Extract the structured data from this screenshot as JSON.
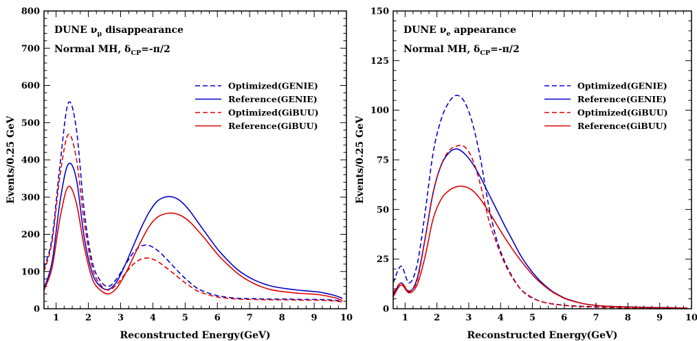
{
  "chart_data": [
    {
      "type": "line",
      "annotation_line1": "DUNE ν",
      "annotation_line1_sub": "μ",
      "annotation_line1_rest": " disappearance",
      "annotation_line2": "Normal MH, δ",
      "annotation_line2_sub": "CP",
      "annotation_line2_rest": "=-π/2",
      "xlabel": "Reconstructed Energy(GeV)",
      "ylabel": "Events/0.25 GeV",
      "xlim": [
        0.625,
        10
      ],
      "ylim": [
        0,
        800
      ],
      "xticks": [
        1,
        2,
        3,
        4,
        5,
        6,
        7,
        8,
        9,
        10
      ],
      "yticks": [
        0,
        100,
        200,
        300,
        400,
        500,
        600,
        700,
        800
      ],
      "legend_position": "top-right",
      "series": [
        {
          "name": "Optimized(GENIE)",
          "color": "#0000cc",
          "dash": true,
          "x": [
            0.625,
            0.875,
            1.125,
            1.375,
            1.625,
            1.875,
            2.125,
            2.375,
            2.625,
            2.875,
            3.125,
            3.375,
            3.625,
            3.875,
            4.125,
            4.375,
            4.625,
            4.875,
            5.125,
            5.375,
            5.625,
            5.875,
            6.125,
            6.625,
            7.125,
            7.625,
            8.125,
            8.625,
            9.125,
            9.625,
            9.875
          ],
          "y": [
            110,
            190,
            390,
            552,
            485,
            260,
            125,
            75,
            60,
            80,
            115,
            148,
            168,
            170,
            158,
            138,
            115,
            92,
            72,
            55,
            45,
            38,
            33,
            28,
            27,
            26,
            26,
            25,
            25,
            23,
            20
          ]
        },
        {
          "name": "Reference(GENIE)",
          "color": "#0000cc",
          "dash": false,
          "x": [
            0.625,
            0.875,
            1.125,
            1.375,
            1.625,
            1.875,
            2.125,
            2.375,
            2.625,
            2.875,
            3.125,
            3.375,
            3.625,
            3.875,
            4.125,
            4.375,
            4.625,
            4.875,
            5.125,
            5.375,
            5.625,
            5.875,
            6.125,
            6.625,
            7.125,
            7.625,
            8.125,
            8.625,
            9.125,
            9.625,
            9.875
          ],
          "y": [
            55,
            125,
            290,
            388,
            350,
            190,
            95,
            60,
            52,
            72,
            115,
            165,
            215,
            258,
            288,
            300,
            300,
            288,
            265,
            235,
            205,
            175,
            148,
            105,
            78,
            62,
            54,
            49,
            45,
            36,
            28
          ]
        },
        {
          "name": "Optimized(GiBUU)",
          "color": "#dd0000",
          "dash": true,
          "x": [
            0.625,
            0.875,
            1.125,
            1.375,
            1.625,
            1.875,
            2.125,
            2.375,
            2.625,
            2.875,
            3.125,
            3.375,
            3.625,
            3.875,
            4.125,
            4.375,
            4.625,
            4.875,
            5.125,
            5.375,
            5.625,
            5.875,
            6.125,
            6.625,
            7.125,
            7.625,
            8.125,
            8.625,
            9.125,
            9.625,
            9.875
          ],
          "y": [
            100,
            180,
            360,
            468,
            405,
            230,
            110,
            65,
            50,
            65,
            92,
            118,
            133,
            136,
            128,
            113,
            96,
            78,
            62,
            48,
            40,
            34,
            30,
            26,
            25,
            24,
            24,
            23,
            23,
            21,
            18
          ]
        },
        {
          "name": "Reference(GiBUU)",
          "color": "#dd0000",
          "dash": false,
          "x": [
            0.625,
            0.875,
            1.125,
            1.375,
            1.625,
            1.875,
            2.125,
            2.375,
            2.625,
            2.875,
            3.125,
            3.375,
            3.625,
            3.875,
            4.125,
            4.375,
            4.625,
            4.875,
            5.125,
            5.375,
            5.625,
            5.875,
            6.125,
            6.625,
            7.125,
            7.625,
            8.125,
            8.625,
            9.125,
            9.625,
            9.875
          ],
          "y": [
            50,
            110,
            245,
            328,
            285,
            165,
            80,
            50,
            40,
            55,
            90,
            135,
            180,
            220,
            245,
            255,
            257,
            250,
            235,
            212,
            187,
            160,
            135,
            95,
            68,
            52,
            45,
            41,
            38,
            30,
            22
          ]
        }
      ]
    },
    {
      "type": "line",
      "annotation_line1": "DUNE ν",
      "annotation_line1_sub": "e",
      "annotation_line1_rest": " appearance",
      "annotation_line2": "Normal MH, δ",
      "annotation_line2_sub": "CP",
      "annotation_line2_rest": "=-π/2",
      "xlabel": "Reconstructed Energy(GeV)",
      "ylabel": "Events/0.25 GeV",
      "xlim": [
        0.625,
        10
      ],
      "ylim": [
        0,
        150
      ],
      "xticks": [
        1,
        2,
        3,
        4,
        5,
        6,
        7,
        8,
        9,
        10
      ],
      "yticks": [
        0,
        25,
        50,
        75,
        100,
        125,
        150
      ],
      "legend_position": "top-right",
      "series": [
        {
          "name": "Optimized(GENIE)",
          "color": "#0000cc",
          "dash": true,
          "x": [
            0.625,
            0.875,
            1.125,
            1.375,
            1.625,
            1.875,
            2.125,
            2.375,
            2.625,
            2.875,
            3.125,
            3.375,
            3.625,
            3.875,
            4.125,
            4.375,
            4.625,
            4.875,
            5.125,
            5.375,
            5.625,
            5.875,
            6.125,
            6.625,
            7.125,
            7.625,
            8.125,
            8.625,
            9.125,
            9.625,
            9.875
          ],
          "y": [
            13,
            21.5,
            13,
            22,
            48,
            78,
            95,
            104,
            107.5,
            104,
            93,
            75,
            52,
            35,
            24,
            16,
            10,
            6.5,
            4.5,
            3.2,
            2.5,
            2,
            1.6,
            1.2,
            0.9,
            0.7,
            0.6,
            0.5,
            0.4,
            0.3,
            0.2
          ]
        },
        {
          "name": "Reference(GENIE)",
          "color": "#0000cc",
          "dash": false,
          "x": [
            0.625,
            0.875,
            1.125,
            1.375,
            1.625,
            1.875,
            2.125,
            2.375,
            2.625,
            2.875,
            3.125,
            3.375,
            3.625,
            3.875,
            4.125,
            4.375,
            4.625,
            4.875,
            5.125,
            5.375,
            5.625,
            5.875,
            6.125,
            6.625,
            7.125,
            7.625,
            8.125,
            8.625,
            9.125,
            9.625,
            9.875
          ],
          "y": [
            7,
            13,
            8.5,
            15,
            35,
            58,
            72,
            78.5,
            80.5,
            78,
            73,
            66,
            58,
            50,
            42,
            34.5,
            27,
            21,
            16,
            12,
            8.8,
            6.5,
            4.7,
            2.5,
            1.5,
            1.1,
            0.9,
            0.7,
            0.6,
            0.4,
            0.3
          ]
        },
        {
          "name": "Optimized(GiBUU)",
          "color": "#dd0000",
          "dash": true,
          "x": [
            0.625,
            0.875,
            1.125,
            1.375,
            1.625,
            1.875,
            2.125,
            2.375,
            2.625,
            2.875,
            3.125,
            3.375,
            3.625,
            3.875,
            4.125,
            4.375,
            4.625,
            4.875,
            5.125,
            5.375,
            5.625,
            5.875,
            6.125,
            6.625,
            7.125,
            7.625,
            8.125,
            8.625,
            9.125,
            9.625,
            9.875
          ],
          "y": [
            8,
            13,
            9,
            14,
            35,
            58,
            72,
            79.5,
            82,
            81.5,
            75,
            62,
            45,
            33,
            23,
            15.5,
            10,
            6.8,
            4.5,
            3.2,
            2.4,
            1.9,
            1.5,
            1.1,
            0.8,
            0.6,
            0.5,
            0.4,
            0.3,
            0.2,
            0.2
          ]
        },
        {
          "name": "Reference(GiBUU)",
          "color": "#dd0000",
          "dash": false,
          "x": [
            0.625,
            0.875,
            1.125,
            1.375,
            1.625,
            1.875,
            2.125,
            2.375,
            2.625,
            2.875,
            3.125,
            3.375,
            3.625,
            3.875,
            4.125,
            4.375,
            4.625,
            4.875,
            5.125,
            5.375,
            5.625,
            5.875,
            6.125,
            6.625,
            7.125,
            7.625,
            8.125,
            8.625,
            9.125,
            9.625,
            9.875
          ],
          "y": [
            6,
            12,
            8,
            12,
            26,
            45,
            55,
            59.5,
            61.5,
            61.5,
            59.5,
            55,
            49,
            42.5,
            36,
            30,
            24.5,
            19.5,
            15,
            11.5,
            8.5,
            6.3,
            4.5,
            2.5,
            1.5,
            1,
            0.8,
            0.6,
            0.5,
            0.4,
            0.3
          ]
        }
      ]
    }
  ]
}
